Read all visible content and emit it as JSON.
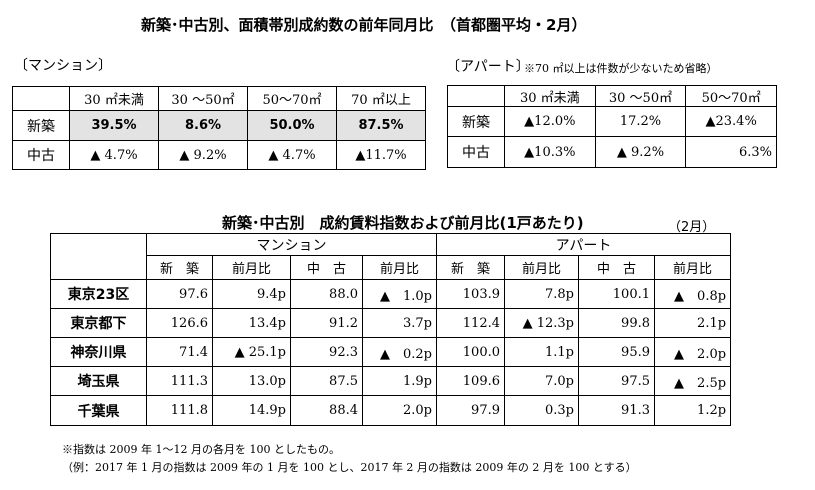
{
  "top_title": "新築･中古別、面積帯別成約数の前年同月比　（首都圏平均・2月）",
  "mansion_label": "〔マンション〕",
  "apart_label": "〔アパート〕",
  "apart_note": "※70 ㎡以上は件数が少ないため省略）",
  "mansion_table": {
    "headers": [
      "30 ㎡未満",
      "30 ～50㎡",
      "50～70㎡",
      "70 ㎡以上"
    ],
    "rows": [
      {
        "label": "新築",
        "values": [
          "39.5%",
          "8.6%",
          "50.0%",
          "87.5%"
        ]
      },
      {
        "label": "中古",
        "values": [
          "▲ 4.7%",
          "▲ 9.2%",
          "▲ 4.7%",
          "▲11.7%"
        ]
      }
    ]
  },
  "apart_table": {
    "headers": [
      "30 ㎡未満",
      "30 ～50㎡",
      "50～70㎡"
    ],
    "rows": [
      {
        "label": "新築",
        "values": [
          "▲12.0%",
          "17.2%",
          "▲23.4%"
        ]
      },
      {
        "label": "中古",
        "values": [
          "▲10.3%",
          "▲ 9.2%",
          "6.3%"
        ]
      }
    ]
  },
  "index_title": "新築･中古別　成約賃料指数および前月比(1戸あたり)",
  "month_label": "（2月）",
  "index_table": {
    "group_headers": [
      "マンション",
      "アパート"
    ],
    "sub_headers": [
      "新　築",
      "前月比",
      "中　古",
      "前月比",
      "新　築",
      "前月比",
      "中　古",
      "前月比"
    ],
    "rows": [
      {
        "label": "東京23区",
        "values": [
          "97.6",
          "9.4p",
          "88.0",
          "▲　1.0p",
          "103.9",
          "7.8p",
          "100.1",
          "▲　0.8p"
        ]
      },
      {
        "label": "東京都下",
        "values": [
          "126.6",
          "13.4p",
          "91.2",
          "3.7p",
          "112.4",
          "▲ 12.3p",
          "99.8",
          "2.1p"
        ]
      },
      {
        "label": "神奈川県",
        "values": [
          "71.4",
          "▲ 25.1p",
          "92.3",
          "▲　0.2p",
          "100.0",
          "1.1p",
          "95.9",
          "▲　2.0p"
        ]
      },
      {
        "label": "埼玉県",
        "values": [
          "111.3",
          "13.0p",
          "87.5",
          "1.9p",
          "109.6",
          "7.0p",
          "97.5",
          "▲　2.5p"
        ]
      },
      {
        "label": "千葉県",
        "values": [
          "111.8",
          "14.9p",
          "88.4",
          "2.0p",
          "97.9",
          "0.3p",
          "91.3",
          "1.2p"
        ]
      }
    ]
  },
  "footnote1": "※指数は 2009 年 1～12 月の各月を 100 としたもの。",
  "footnote2": "（例：2017 年 1 月の指数は 2009 年の 1 月を 100 とし、2017 年 2 月の指数は 2009 年の 2 月を 100 とする）"
}
